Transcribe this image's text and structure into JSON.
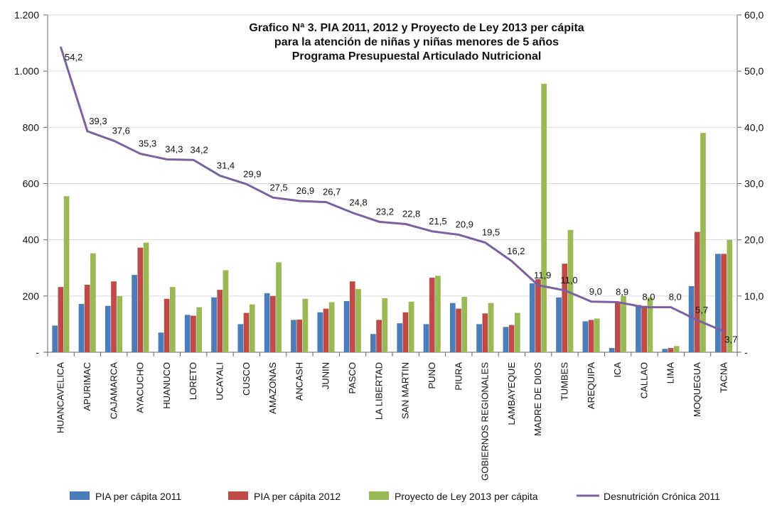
{
  "chart_data": {
    "type": "bar",
    "title_lines": [
      "Grafico Nª 3. PIA 2011, 2012 y Proyecto de Ley 2013 per cápita",
      "para la atención de niñas y niñas menores de 5 años",
      "Programa Presupuestal Articulado Nutricional"
    ],
    "categories": [
      "HUANCAVELICA",
      "APURIMAC",
      "CAJAMARCA",
      "AYACUCHO",
      "HUANUCO",
      "LORETO",
      "UCAYALI",
      "CUSCO",
      "AMAZONAS",
      "ANCASH",
      "JUNIN",
      "PASCO",
      "LA LIBERTAD",
      "SAN MARTIN",
      "PUNO",
      "PIURA",
      "GOBIERNOS REGIONALES",
      "LAMBAYEQUE",
      "MADRE DE DIOS",
      "TUMBES",
      "AREQUIPA",
      "ICA",
      "CALLAO",
      "LIMA",
      "MOQUEGUA",
      "TACNA"
    ],
    "series": [
      {
        "name": "PIA per cápita 2011",
        "axis": "left",
        "type": "bar",
        "values": [
          95,
          172,
          165,
          275,
          70,
          133,
          195,
          100,
          210,
          115,
          142,
          182,
          65,
          103,
          100,
          175,
          100,
          90,
          245,
          195,
          110,
          15,
          168,
          12,
          235,
          350
        ]
      },
      {
        "name": "PIA per cápita 2012",
        "axis": "left",
        "type": "bar",
        "values": [
          232,
          240,
          252,
          372,
          190,
          130,
          222,
          140,
          200,
          116,
          155,
          252,
          115,
          142,
          265,
          155,
          138,
          97,
          260,
          315,
          115,
          180,
          165,
          15,
          428,
          350
        ]
      },
      {
        "name": "Proyecto de Ley 2013 per cápita",
        "axis": "left",
        "type": "bar",
        "values": [
          555,
          352,
          200,
          390,
          232,
          160,
          292,
          170,
          320,
          190,
          178,
          225,
          192,
          180,
          272,
          197,
          175,
          140,
          955,
          435,
          120,
          200,
          195,
          22,
          780,
          400
        ]
      },
      {
        "name": "Desnutrición Crónica 2011",
        "axis": "right",
        "type": "line",
        "values": [
          54.2,
          39.3,
          37.6,
          35.3,
          34.3,
          34.2,
          31.4,
          29.9,
          27.5,
          26.9,
          26.7,
          24.8,
          23.2,
          22.8,
          21.5,
          20.9,
          19.5,
          16.2,
          11.9,
          11.0,
          9.0,
          8.9,
          8.0,
          8.0,
          5.7,
          3.7
        ],
        "data_labels": [
          "54,2",
          "39,3",
          "37,6",
          "35,3",
          "34,3",
          "34,2",
          "31,4",
          "29,9",
          "27,5",
          "26,9",
          "26,7",
          "24,8",
          "23,2",
          "22,8",
          "21,5",
          "20,9",
          "19,5",
          "16,2",
          "11,9",
          "11,0",
          "9,0",
          "8,9",
          "8,0",
          "8,0",
          "5,7",
          "3,7"
        ]
      }
    ],
    "left_axis": {
      "ylim": [
        0,
        1200
      ],
      "ticks": [
        0,
        200,
        400,
        600,
        800,
        1000,
        1200
      ],
      "tick_labels": [
        "-",
        "200",
        "400",
        "600",
        "800",
        "1.000",
        "1.200"
      ]
    },
    "right_axis": {
      "ylim": [
        0,
        60
      ],
      "ticks": [
        0,
        10,
        20,
        30,
        40,
        50,
        60
      ],
      "tick_labels": [
        "-",
        "10,0",
        "20,0",
        "30,0",
        "40,0",
        "50,0",
        "60,0"
      ]
    },
    "grid": true,
    "legend_position": "bottom",
    "colors": {
      "series_2011": "#4A7EBB",
      "series_2012": "#BE4B48",
      "series_2013": "#98B954",
      "line_2011": "#7D60A0",
      "grid": "#d9d9d9",
      "axis": "#666666",
      "text": "#111111"
    }
  }
}
